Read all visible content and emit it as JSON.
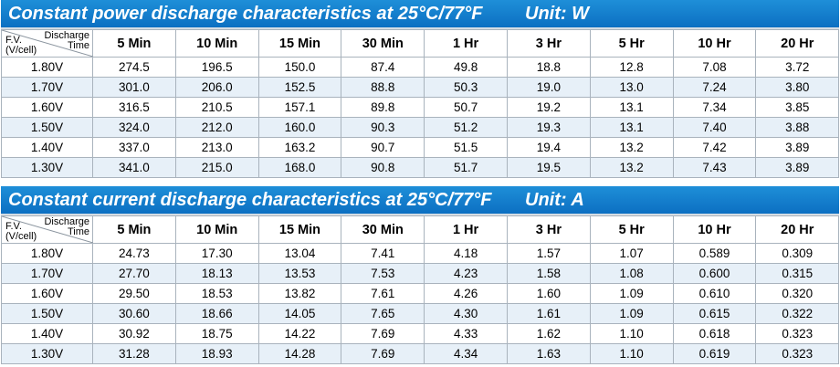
{
  "tables": [
    {
      "title": "Constant power discharge characteristics at 25°C/77°F",
      "unit": "Unit: W",
      "corner_top_line1": "Discharge",
      "corner_top_line2": "Time",
      "corner_bottom_line1": "F.V.",
      "corner_bottom_line2": "(V/cell)",
      "columns": [
        "5 Min",
        "10 Min",
        "15 Min",
        "30 Min",
        "1 Hr",
        "3 Hr",
        "5 Hr",
        "10 Hr",
        "20 Hr"
      ],
      "rows": [
        {
          "fv": "1.80V",
          "values": [
            "274.5",
            "196.5",
            "150.0",
            "87.4",
            "49.8",
            "18.8",
            "12.8",
            "7.08",
            "3.72"
          ]
        },
        {
          "fv": "1.70V",
          "values": [
            "301.0",
            "206.0",
            "152.5",
            "88.8",
            "50.3",
            "19.0",
            "13.0",
            "7.24",
            "3.80"
          ]
        },
        {
          "fv": "1.60V",
          "values": [
            "316.5",
            "210.5",
            "157.1",
            "89.8",
            "50.7",
            "19.2",
            "13.1",
            "7.34",
            "3.85"
          ]
        },
        {
          "fv": "1.50V",
          "values": [
            "324.0",
            "212.0",
            "160.0",
            "90.3",
            "51.2",
            "19.3",
            "13.1",
            "7.40",
            "3.88"
          ]
        },
        {
          "fv": "1.40V",
          "values": [
            "337.0",
            "213.0",
            "163.2",
            "90.7",
            "51.5",
            "19.4",
            "13.2",
            "7.42",
            "3.89"
          ]
        },
        {
          "fv": "1.30V",
          "values": [
            "341.0",
            "215.0",
            "168.0",
            "90.8",
            "51.7",
            "19.5",
            "13.2",
            "7.43",
            "3.89"
          ]
        }
      ]
    },
    {
      "title": "Constant current discharge characteristics at 25°C/77°F",
      "unit": "Unit: A",
      "corner_top_line1": "Discharge",
      "corner_top_line2": "Time",
      "corner_bottom_line1": "F.V.",
      "corner_bottom_line2": "(V/cell)",
      "columns": [
        "5 Min",
        "10 Min",
        "15 Min",
        "30 Min",
        "1 Hr",
        "3 Hr",
        "5 Hr",
        "10 Hr",
        "20 Hr"
      ],
      "rows": [
        {
          "fv": "1.80V",
          "values": [
            "24.73",
            "17.30",
            "13.04",
            "7.41",
            "4.18",
            "1.57",
            "1.07",
            "0.589",
            "0.309"
          ]
        },
        {
          "fv": "1.70V",
          "values": [
            "27.70",
            "18.13",
            "13.53",
            "7.53",
            "4.23",
            "1.58",
            "1.08",
            "0.600",
            "0.315"
          ]
        },
        {
          "fv": "1.60V",
          "values": [
            "29.50",
            "18.53",
            "13.82",
            "7.61",
            "4.26",
            "1.60",
            "1.09",
            "0.610",
            "0.320"
          ]
        },
        {
          "fv": "1.50V",
          "values": [
            "30.60",
            "18.66",
            "14.05",
            "7.65",
            "4.30",
            "1.61",
            "1.09",
            "0.615",
            "0.322"
          ]
        },
        {
          "fv": "1.40V",
          "values": [
            "30.92",
            "18.75",
            "14.22",
            "7.69",
            "4.33",
            "1.62",
            "1.10",
            "0.618",
            "0.323"
          ]
        },
        {
          "fv": "1.30V",
          "values": [
            "31.28",
            "18.93",
            "14.28",
            "7.69",
            "4.34",
            "1.63",
            "1.10",
            "0.619",
            "0.323"
          ]
        }
      ]
    }
  ]
}
